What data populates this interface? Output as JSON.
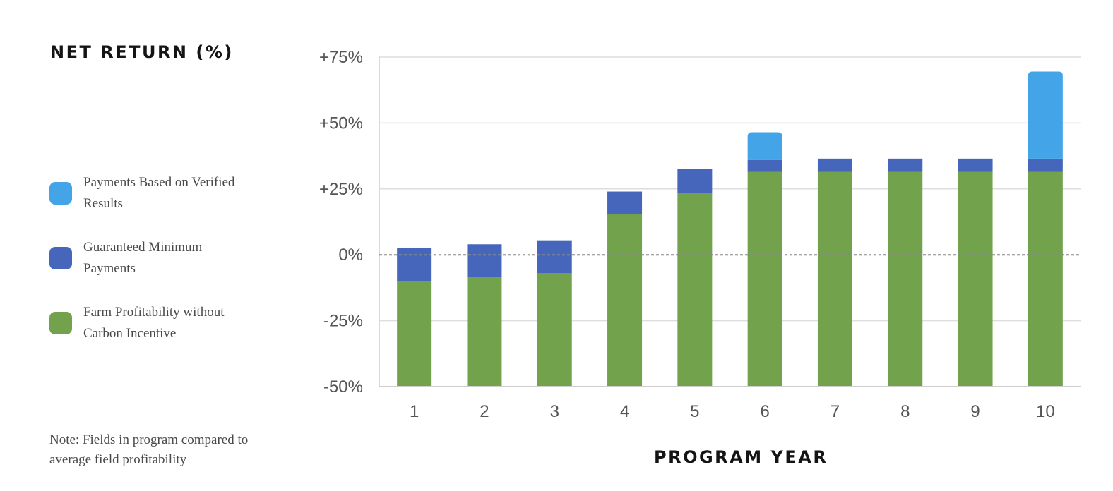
{
  "title": "NET RETURN (%)",
  "note": "Note: Fields in program compared to average field profitability",
  "colors": {
    "verified": "#44a4e8",
    "guaranteed": "#4566bb",
    "farm": "#72a24b",
    "grid": "#dedede",
    "axis": "#cfcfcf",
    "zero_line": "#888888"
  },
  "legend": [
    {
      "label": "Payments Based on Verified Results",
      "color": "#44a4e8",
      "icon": "legend-swatch-verified"
    },
    {
      "label": "Guaranteed Minimum Payments",
      "color": "#4566bb",
      "icon": "legend-swatch-guaranteed"
    },
    {
      "label": "Farm Profitability without Carbon Incentive",
      "color": "#72a24b",
      "icon": "legend-swatch-farm"
    }
  ],
  "chart_data": {
    "type": "bar",
    "stacked": true,
    "xlabel": "PROGRAM YEAR",
    "ylabel": "",
    "categories": [
      "1",
      "2",
      "3",
      "4",
      "5",
      "6",
      "7",
      "8",
      "9",
      "10"
    ],
    "ylim": [
      -50,
      75
    ],
    "yticks": [
      75,
      50,
      25,
      0,
      -25,
      -50
    ],
    "ytick_labels": [
      "+75%",
      "+50%",
      "+25%",
      "0%",
      "-25%",
      "-50%"
    ],
    "grid": true,
    "zero_line": "dashed",
    "series": [
      {
        "name": "Farm Profitability without Carbon Incentive",
        "color": "#72a24b",
        "values": [
          -10,
          -8.5,
          -7,
          15.5,
          23.5,
          31.5,
          31.5,
          31.5,
          31.5,
          31.5
        ]
      },
      {
        "name": "Guaranteed Minimum Payments",
        "color": "#4566bb",
        "values": [
          12.5,
          12.5,
          12.5,
          8.5,
          9,
          4.5,
          5,
          5,
          5,
          5
        ]
      },
      {
        "name": "Payments Based on Verified Results",
        "color": "#44a4e8",
        "values": [
          0,
          0,
          0,
          0,
          0,
          10.5,
          0,
          0,
          0,
          33
        ]
      }
    ]
  }
}
